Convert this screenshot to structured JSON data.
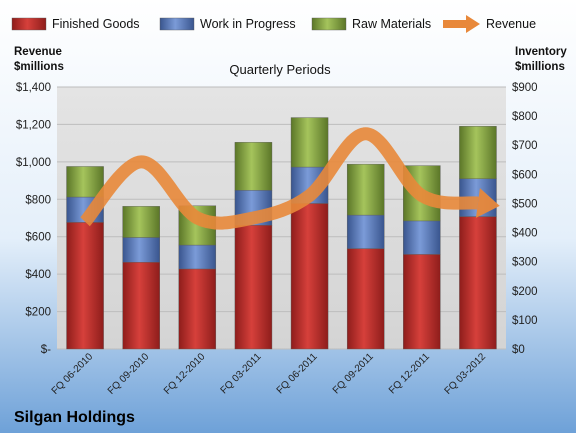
{
  "chart_data": {
    "type": "bar",
    "stacked": true,
    "company": "Silgan Holdings",
    "subtitle": "Quarterly Periods",
    "left_axis_title": [
      "Revenue",
      "$millions"
    ],
    "right_axis_title": [
      "Inventory",
      "$millions"
    ],
    "categories": [
      "FQ 06-2010",
      "FQ 09-2010",
      "FQ 12-2010",
      "FQ 03-2011",
      "FQ 06-2011",
      "FQ 09-2011",
      "FQ 12-2011",
      "FQ 03-2012"
    ],
    "left_axis": {
      "min": 0,
      "max": 1400,
      "step": 200,
      "tick_labels": [
        "$-",
        "$200",
        "$400",
        "$600",
        "$800",
        "$1,000",
        "$1,200",
        "$1,400"
      ]
    },
    "right_axis": {
      "min": 0,
      "max": 900,
      "step": 100,
      "tick_labels": [
        "$0",
        "$100",
        "$200",
        "$300",
        "$400",
        "$500",
        "$600",
        "$700",
        "$800",
        "$900"
      ]
    },
    "series": [
      {
        "name": "Finished Goods",
        "axis": "right",
        "color": "#c0302c",
        "values": [
          435,
          298,
          275,
          425,
          500,
          345,
          325,
          455
        ]
      },
      {
        "name": "Work in Progress",
        "axis": "right",
        "color": "#5b7fc4",
        "values": [
          87,
          85,
          82,
          120,
          125,
          115,
          115,
          130
        ]
      },
      {
        "name": "Raw Materials",
        "axis": "right",
        "color": "#8aaa44",
        "values": [
          105,
          107,
          135,
          165,
          170,
          175,
          190,
          180
        ]
      }
    ],
    "line_series": {
      "name": "Revenue",
      "axis": "left",
      "color": "#e8883a",
      "values": [
        680,
        1000,
        700,
        700,
        820,
        1150,
        820,
        780
      ]
    },
    "grid": true,
    "legend_position": "top"
  }
}
